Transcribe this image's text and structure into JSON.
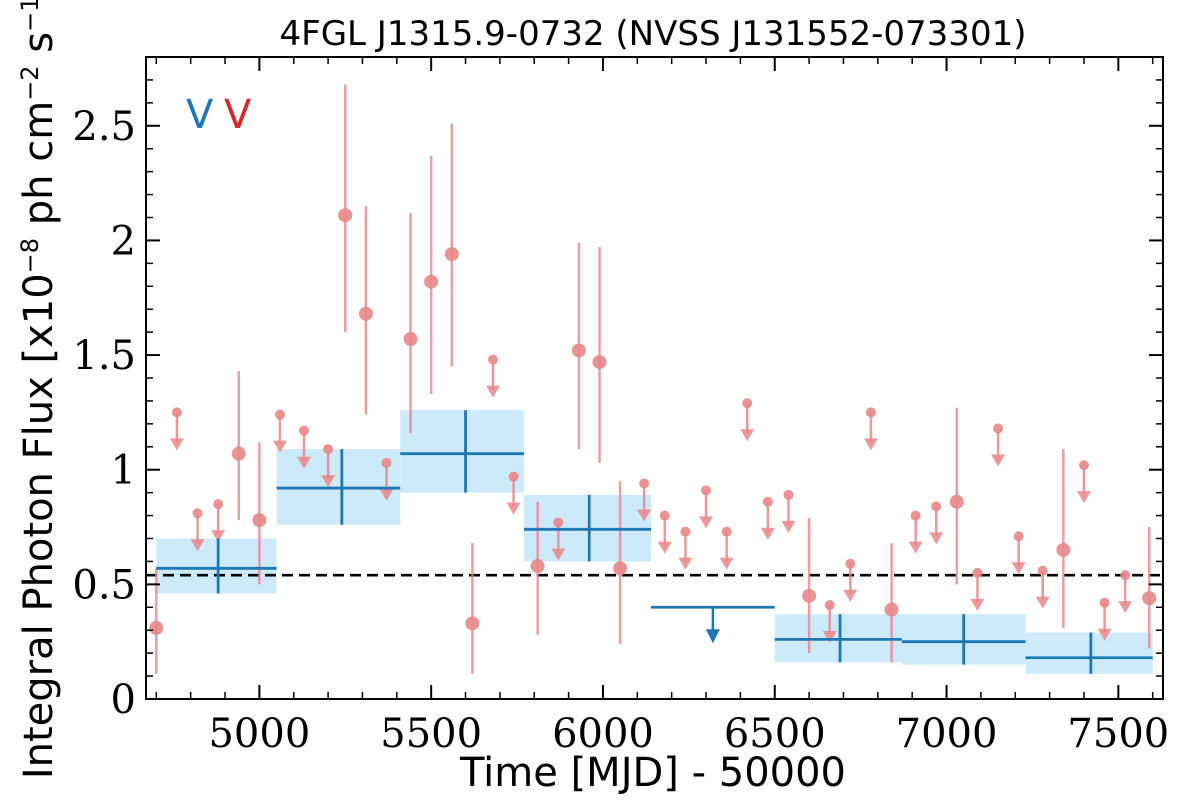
{
  "chart_data": {
    "type": "scatter",
    "title": "4FGL J1315.9-0732 (NVSS J131552-073301)",
    "xlabel": "Time [MJD] - 50000",
    "ylabel": "Integral Photon Flux [x10^-8 ph cm^-2 s^-1]",
    "ylabel_parts": {
      "base": "Integral Photon Flux [x10",
      "exp1": "−8",
      "mid": " ph cm",
      "exp2": "−2",
      "mid2": " s",
      "exp3": "−1",
      "end": "]"
    },
    "xlim": [
      4670,
      7630
    ],
    "ylim": [
      0,
      2.8
    ],
    "xticks": [
      5000,
      5500,
      6000,
      6500,
      7000,
      7500
    ],
    "yticks": [
      0,
      0.5,
      1,
      1.5,
      2,
      2.5
    ],
    "ytick_labels": [
      "0",
      "0.5",
      "1",
      "1.5",
      "2",
      "2.5"
    ],
    "reference_line_y": 0.54,
    "legend": [
      {
        "label": "V",
        "color": "#1f77b4"
      },
      {
        "label": "V",
        "color": "#d62728"
      }
    ],
    "colors": {
      "fine_points": "#e8878a",
      "coarse_line": "#1f77b4",
      "coarse_band": "#cdeafb"
    },
    "coarse_bins": [
      {
        "x0": 4700,
        "x1": 5050,
        "xc": 4880,
        "y": 0.57,
        "ylo": 0.46,
        "yhi": 0.7,
        "upper_limit": false
      },
      {
        "x0": 5050,
        "x1": 5410,
        "xc": 5240,
        "y": 0.92,
        "ylo": 0.76,
        "yhi": 1.09,
        "upper_limit": false
      },
      {
        "x0": 5410,
        "x1": 5770,
        "xc": 5600,
        "y": 1.07,
        "ylo": 0.9,
        "yhi": 1.26,
        "upper_limit": false
      },
      {
        "x0": 5770,
        "x1": 6140,
        "xc": 5960,
        "y": 0.74,
        "ylo": 0.6,
        "yhi": 0.89,
        "upper_limit": false
      },
      {
        "x0": 6140,
        "x1": 6500,
        "xc": 6320,
        "y": 0.4,
        "upper_limit": true
      },
      {
        "x0": 6500,
        "x1": 6870,
        "xc": 6690,
        "y": 0.26,
        "ylo": 0.16,
        "yhi": 0.37,
        "upper_limit": false
      },
      {
        "x0": 6870,
        "x1": 7230,
        "xc": 7050,
        "y": 0.25,
        "ylo": 0.15,
        "yhi": 0.37,
        "upper_limit": false
      },
      {
        "x0": 7230,
        "x1": 7600,
        "xc": 7420,
        "y": 0.18,
        "ylo": 0.11,
        "yhi": 0.29,
        "upper_limit": false
      }
    ],
    "fine_points": [
      {
        "x": 4700,
        "y": 0.31,
        "ylo": 0.11,
        "yhi": 0.57
      },
      {
        "x": 4760,
        "y": 1.25,
        "upper_limit": true
      },
      {
        "x": 4820,
        "y": 0.81,
        "upper_limit": true
      },
      {
        "x": 4880,
        "y": 0.85,
        "upper_limit": true
      },
      {
        "x": 4940,
        "y": 1.07,
        "ylo": 0.78,
        "yhi": 1.43
      },
      {
        "x": 5000,
        "y": 0.78,
        "ylo": 0.5,
        "yhi": 1.12
      },
      {
        "x": 5060,
        "y": 1.24,
        "upper_limit": true
      },
      {
        "x": 5130,
        "y": 1.17,
        "upper_limit": true
      },
      {
        "x": 5200,
        "y": 1.09,
        "upper_limit": true
      },
      {
        "x": 5250,
        "y": 2.11,
        "ylo": 1.6,
        "yhi": 2.68
      },
      {
        "x": 5310,
        "y": 1.68,
        "ylo": 1.24,
        "yhi": 2.15
      },
      {
        "x": 5370,
        "y": 1.03,
        "upper_limit": true
      },
      {
        "x": 5440,
        "y": 1.57,
        "ylo": 1.16,
        "yhi": 2.12
      },
      {
        "x": 5500,
        "y": 1.82,
        "ylo": 1.33,
        "yhi": 2.37
      },
      {
        "x": 5560,
        "y": 1.94,
        "ylo": 1.45,
        "yhi": 2.51
      },
      {
        "x": 5620,
        "y": 0.33,
        "ylo": 0.11,
        "yhi": 0.68
      },
      {
        "x": 5680,
        "y": 1.48,
        "upper_limit": true
      },
      {
        "x": 5740,
        "y": 0.97,
        "upper_limit": true
      },
      {
        "x": 5810,
        "y": 0.58,
        "ylo": 0.28,
        "yhi": 0.86
      },
      {
        "x": 5870,
        "y": 0.77,
        "upper_limit": true
      },
      {
        "x": 5930,
        "y": 1.52,
        "ylo": 1.09,
        "yhi": 1.99
      },
      {
        "x": 5990,
        "y": 1.47,
        "ylo": 1.03,
        "yhi": 1.97
      },
      {
        "x": 6050,
        "y": 0.57,
        "ylo": 0.24,
        "yhi": 0.95
      },
      {
        "x": 6120,
        "y": 0.94,
        "upper_limit": true
      },
      {
        "x": 6180,
        "y": 0.8,
        "upper_limit": true
      },
      {
        "x": 6240,
        "y": 0.73,
        "upper_limit": true
      },
      {
        "x": 6300,
        "y": 0.91,
        "upper_limit": true
      },
      {
        "x": 6360,
        "y": 0.73,
        "upper_limit": true
      },
      {
        "x": 6420,
        "y": 1.29,
        "upper_limit": true
      },
      {
        "x": 6480,
        "y": 0.86,
        "upper_limit": true
      },
      {
        "x": 6540,
        "y": 0.89,
        "upper_limit": true
      },
      {
        "x": 6600,
        "y": 0.45,
        "ylo": 0.2,
        "yhi": 0.79
      },
      {
        "x": 6660,
        "y": 0.41,
        "upper_limit": true
      },
      {
        "x": 6720,
        "y": 0.59,
        "upper_limit": true
      },
      {
        "x": 6780,
        "y": 1.25,
        "upper_limit": true
      },
      {
        "x": 6840,
        "y": 0.39,
        "ylo": 0.16,
        "yhi": 0.68
      },
      {
        "x": 6910,
        "y": 0.8,
        "upper_limit": true
      },
      {
        "x": 6970,
        "y": 0.84,
        "upper_limit": true
      },
      {
        "x": 7030,
        "y": 0.86,
        "ylo": 0.5,
        "yhi": 1.27
      },
      {
        "x": 7090,
        "y": 0.55,
        "upper_limit": true
      },
      {
        "x": 7150,
        "y": 1.18,
        "upper_limit": true
      },
      {
        "x": 7210,
        "y": 0.71,
        "upper_limit": true
      },
      {
        "x": 7280,
        "y": 0.56,
        "upper_limit": true
      },
      {
        "x": 7340,
        "y": 0.65,
        "ylo": 0.31,
        "yhi": 1.09
      },
      {
        "x": 7400,
        "y": 1.02,
        "upper_limit": true
      },
      {
        "x": 7460,
        "y": 0.42,
        "upper_limit": true
      },
      {
        "x": 7520,
        "y": 0.54,
        "upper_limit": true
      },
      {
        "x": 7590,
        "y": 0.44,
        "ylo": 0.22,
        "yhi": 0.75
      }
    ]
  }
}
